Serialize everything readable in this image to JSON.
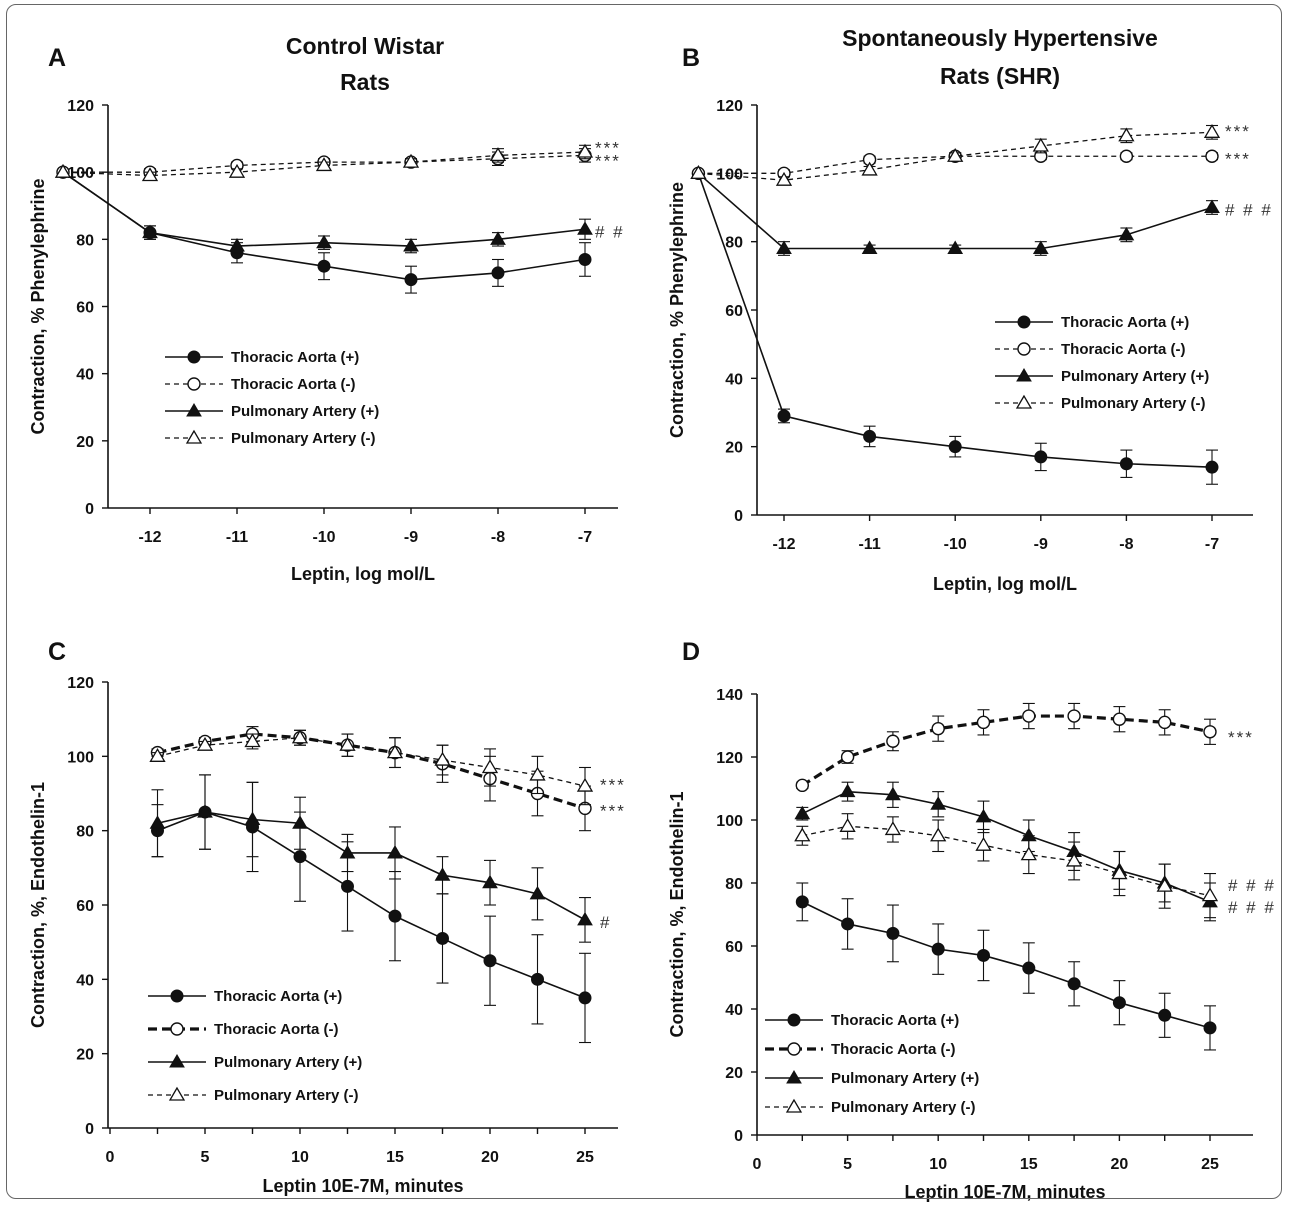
{
  "figure": {
    "panels": [
      "A",
      "B",
      "C",
      "D"
    ]
  },
  "chart_data": [
    {
      "panel": "A",
      "type": "line",
      "title": "Control Wistar Rats",
      "title_lines": [
        "Control Wistar",
        "Rats"
      ],
      "xlabel": "Leptin, log  mol/L",
      "ylabel": "Contraction, % Phenylephrine",
      "x_ticks": [
        -12,
        -11,
        -10,
        -9,
        -8,
        -7
      ],
      "xlim": [
        -13,
        -6.5
      ],
      "ylim": [
        0,
        120
      ],
      "y_ticks": [
        0,
        20,
        40,
        60,
        80,
        100,
        120
      ],
      "grid": false,
      "legend_position": "lower-left",
      "series": [
        {
          "name": "Thoracic Aorta (+)",
          "marker": "filled-circle",
          "line": "solid",
          "x": [
            -13,
            -12,
            -11,
            -10,
            -9,
            -8,
            -7
          ],
          "values": [
            100,
            82,
            76,
            72,
            68,
            70,
            74
          ],
          "err": [
            0,
            2,
            3,
            4,
            4,
            4,
            5
          ]
        },
        {
          "name": "Thoracic Aorta (-)",
          "marker": "open-circle",
          "line": "dashed",
          "x": [
            -13,
            -12,
            -11,
            -10,
            -9,
            -8,
            -7
          ],
          "values": [
            100,
            100,
            102,
            103,
            103,
            104,
            105
          ],
          "err": [
            0,
            1,
            1,
            1,
            1,
            2,
            2
          ]
        },
        {
          "name": "Pulmonary Artery (+)",
          "marker": "filled-triangle",
          "line": "solid",
          "x": [
            -13,
            -12,
            -11,
            -10,
            -9,
            -8,
            -7
          ],
          "values": [
            100,
            82,
            78,
            79,
            78,
            80,
            83
          ],
          "err": [
            0,
            2,
            2,
            2,
            2,
            2,
            3
          ]
        },
        {
          "name": "Pulmonary Artery (-)",
          "marker": "open-triangle",
          "line": "dashed",
          "x": [
            -13,
            -12,
            -11,
            -10,
            -9,
            -8,
            -7
          ],
          "values": [
            100,
            99,
            100,
            102,
            103,
            105,
            106
          ],
          "err": [
            0,
            1,
            1,
            1,
            1,
            2,
            2
          ]
        }
      ],
      "annotations": [
        {
          "text": "***",
          "x": -7,
          "y": 108
        },
        {
          "text": "***",
          "x": -7,
          "y": 104
        },
        {
          "text": "# #",
          "x": -7,
          "y": 83
        }
      ]
    },
    {
      "panel": "B",
      "type": "line",
      "title": "Spontaneously Hypertensive Rats (SHR)",
      "title_lines": [
        "Spontaneously Hypertensive",
        "Rats (SHR)"
      ],
      "xlabel": "Leptin, log  mol/L",
      "ylabel": "Contraction, % Phenylephrine",
      "x_ticks": [
        -12,
        -11,
        -10,
        -9,
        -8,
        -7
      ],
      "xlim": [
        -13,
        -6.5
      ],
      "ylim": [
        0,
        120
      ],
      "y_ticks": [
        0,
        20,
        40,
        60,
        80,
        100,
        120
      ],
      "grid": false,
      "legend_position": "middle-right",
      "series": [
        {
          "name": "Thoracic Aorta (+)",
          "marker": "filled-circle",
          "line": "solid",
          "x": [
            -13,
            -12,
            -11,
            -10,
            -9,
            -8,
            -7
          ],
          "values": [
            100,
            29,
            23,
            20,
            17,
            15,
            14
          ],
          "err": [
            0,
            2,
            3,
            3,
            4,
            4,
            5
          ]
        },
        {
          "name": "Thoracic Aorta (-)",
          "marker": "open-circle",
          "line": "dashed",
          "x": [
            -13,
            -12,
            -11,
            -10,
            -9,
            -8,
            -7
          ],
          "values": [
            100,
            100,
            104,
            105,
            105,
            105,
            105
          ],
          "err": [
            0,
            1,
            1,
            1,
            1,
            1,
            1
          ]
        },
        {
          "name": "Pulmonary Artery (+)",
          "marker": "filled-triangle",
          "line": "solid",
          "x": [
            -13,
            -12,
            -11,
            -10,
            -9,
            -8,
            -7
          ],
          "values": [
            100,
            78,
            78,
            78,
            78,
            82,
            90
          ],
          "err": [
            0,
            2,
            1,
            1,
            2,
            2,
            2
          ]
        },
        {
          "name": "Pulmonary Artery (-)",
          "marker": "open-triangle",
          "line": "dashed",
          "x": [
            -13,
            -12,
            -11,
            -10,
            -9,
            -8,
            -7
          ],
          "values": [
            100,
            98,
            101,
            105,
            108,
            111,
            112
          ],
          "err": [
            0,
            1,
            1,
            1,
            2,
            2,
            2
          ]
        }
      ],
      "annotations": [
        {
          "text": "***",
          "x": -7,
          "y": 113
        },
        {
          "text": "***",
          "x": -7,
          "y": 105
        },
        {
          "text": "# # #",
          "x": -7,
          "y": 90
        }
      ]
    },
    {
      "panel": "C",
      "type": "line",
      "title": "",
      "title_lines": [],
      "xlabel": "Leptin 10E-7M, minutes",
      "ylabel": "Contraction, %, Endothelin-1",
      "x_ticks": [
        0,
        5,
        10,
        15,
        20,
        25
      ],
      "xlim": [
        0,
        27.5
      ],
      "ylim": [
        0,
        120
      ],
      "y_ticks": [
        0,
        20,
        40,
        60,
        80,
        100,
        120
      ],
      "grid": false,
      "legend_position": "lower-left",
      "series": [
        {
          "name": "Thoracic Aorta (+)",
          "marker": "filled-circle",
          "line": "solid",
          "x": [
            2.5,
            5,
            7.5,
            10,
            12.5,
            15,
            17.5,
            20,
            22.5,
            25
          ],
          "values": [
            80,
            85,
            81,
            73,
            65,
            57,
            51,
            45,
            40,
            35
          ],
          "err": [
            7,
            10,
            12,
            12,
            12,
            12,
            12,
            12,
            12,
            12
          ]
        },
        {
          "name": "Thoracic Aorta (-)",
          "marker": "open-circle",
          "line": "bold-dashed",
          "x": [
            2.5,
            5,
            7.5,
            10,
            12.5,
            15,
            17.5,
            20,
            22.5,
            25
          ],
          "values": [
            101,
            104,
            106,
            105,
            103,
            101,
            98,
            94,
            90,
            86
          ],
          "err": [
            1,
            1,
            2,
            2,
            3,
            4,
            5,
            6,
            6,
            6
          ]
        },
        {
          "name": "Pulmonary Artery (+)",
          "marker": "filled-triangle",
          "line": "solid",
          "x": [
            2.5,
            5,
            7.5,
            10,
            12.5,
            15,
            17.5,
            20,
            22.5,
            25
          ],
          "values": [
            82,
            85,
            83,
            82,
            74,
            74,
            68,
            66,
            63,
            56
          ],
          "err": [
            9,
            10,
            10,
            7,
            5,
            7,
            5,
            6,
            7,
            6
          ]
        },
        {
          "name": "Pulmonary Artery (-)",
          "marker": "open-triangle",
          "line": "dashed",
          "x": [
            2.5,
            5,
            7.5,
            10,
            12.5,
            15,
            17.5,
            20,
            22.5,
            25
          ],
          "values": [
            100,
            103,
            104,
            105,
            103,
            101,
            99,
            97,
            95,
            92
          ],
          "err": [
            1,
            1,
            2,
            2,
            3,
            4,
            4,
            5,
            5,
            5
          ]
        }
      ],
      "annotations": [
        {
          "text": "***",
          "x": 25,
          "y": 93
        },
        {
          "text": "***",
          "x": 25,
          "y": 86
        },
        {
          "text": "#",
          "x": 25,
          "y": 56
        }
      ]
    },
    {
      "panel": "D",
      "type": "line",
      "title": "",
      "title_lines": [],
      "xlabel": "Leptin 10E-7M, minutes",
      "ylabel": "Contraction, %, Endothelin-1",
      "x_ticks": [
        0,
        5,
        10,
        15,
        20,
        25
      ],
      "xlim": [
        0,
        27.5
      ],
      "ylim": [
        0,
        140
      ],
      "y_ticks": [
        0,
        20,
        40,
        60,
        80,
        100,
        120,
        140
      ],
      "grid": false,
      "legend_position": "lower-left",
      "series": [
        {
          "name": "Thoracic Aorta (+)",
          "marker": "filled-circle",
          "line": "solid",
          "x": [
            2.5,
            5,
            7.5,
            10,
            12.5,
            15,
            17.5,
            20,
            22.5,
            25
          ],
          "values": [
            74,
            67,
            64,
            59,
            57,
            53,
            48,
            42,
            38,
            34
          ],
          "err": [
            6,
            8,
            9,
            8,
            8,
            8,
            7,
            7,
            7,
            7
          ]
        },
        {
          "name": "Thoracic Aorta (-)",
          "marker": "open-circle",
          "line": "bold-dashed",
          "x": [
            2.5,
            5,
            7.5,
            10,
            12.5,
            15,
            17.5,
            20,
            22.5,
            25
          ],
          "values": [
            111,
            120,
            125,
            129,
            131,
            133,
            133,
            132,
            131,
            128
          ],
          "err": [
            1,
            2,
            3,
            4,
            4,
            4,
            4,
            4,
            4,
            4
          ]
        },
        {
          "name": "Pulmonary Artery (+)",
          "marker": "filled-triangle",
          "line": "solid",
          "x": [
            2.5,
            5,
            7.5,
            10,
            12.5,
            15,
            17.5,
            20,
            22.5,
            25
          ],
          "values": [
            102,
            109,
            108,
            105,
            101,
            95,
            90,
            84,
            80,
            74
          ],
          "err": [
            2,
            3,
            4,
            4,
            5,
            5,
            6,
            6,
            6,
            6
          ]
        },
        {
          "name": "Pulmonary Artery (-)",
          "marker": "open-triangle",
          "line": "dashed",
          "x": [
            2.5,
            5,
            7.5,
            10,
            12.5,
            15,
            17.5,
            20,
            22.5,
            25
          ],
          "values": [
            95,
            98,
            97,
            95,
            92,
            89,
            87,
            83,
            79,
            76
          ],
          "err": [
            3,
            4,
            4,
            5,
            5,
            6,
            6,
            7,
            7,
            7
          ]
        }
      ],
      "annotations": [
        {
          "text": "***",
          "x": 25,
          "y": 127
        },
        {
          "text": "# # #",
          "x": 25,
          "y": 80
        },
        {
          "text": "# # #",
          "x": 25,
          "y": 73
        }
      ]
    }
  ]
}
